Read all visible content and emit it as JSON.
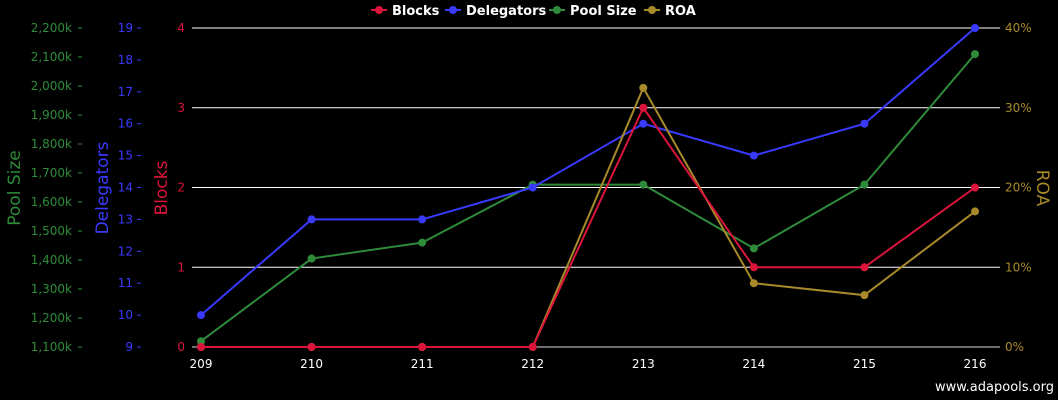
{
  "chart_data": {
    "type": "line",
    "x": [
      "209",
      "210",
      "211",
      "212",
      "213",
      "214",
      "215",
      "216"
    ],
    "legend": {
      "position": "top-center"
    },
    "grid": true,
    "series": [
      {
        "name": "Blocks",
        "color": "#dc143c",
        "axis": "blocks",
        "values": [
          0,
          0,
          0,
          0,
          3,
          1,
          1,
          2
        ]
      },
      {
        "name": "Delegators",
        "color": "#3a3aff",
        "axis": "delegators",
        "values": [
          10,
          13,
          13,
          14,
          16,
          15,
          16,
          19
        ]
      },
      {
        "name": "Pool Size",
        "color": "#2e8b3a",
        "axis": "poolsize",
        "values": [
          1120,
          1405,
          1460,
          1660,
          1660,
          1440,
          1660,
          2110
        ]
      },
      {
        "name": "ROA",
        "color": "#a88a2a",
        "axis": "roa",
        "values": [
          0,
          0,
          0,
          0,
          32.5,
          8,
          6.5,
          17
        ]
      }
    ],
    "axes": {
      "poolsize": {
        "label": "Pool Size",
        "color": "#2e8b3a",
        "range": [
          1100,
          2200
        ],
        "ticks": [
          "2,200k",
          "2,100k",
          "2,000k",
          "1,900k",
          "1,800k",
          "1,700k",
          "1,600k",
          "1,500k",
          "1,400k",
          "1,300k",
          "1,200k",
          "1,100k"
        ]
      },
      "delegators": {
        "label": "Delegators",
        "color": "#3a3aff",
        "range": [
          9,
          19
        ],
        "ticks": [
          "19",
          "18",
          "17",
          "16",
          "15",
          "14",
          "13",
          "12",
          "11",
          "10",
          "9"
        ]
      },
      "blocks": {
        "label": "Blocks",
        "color": "#dc143c",
        "range": [
          0,
          4
        ],
        "ticks": [
          "4",
          "3",
          "2",
          "1",
          "0"
        ]
      },
      "roa": {
        "label": "ROA",
        "color": "#a88a2a",
        "range": [
          0,
          40
        ],
        "ticks": [
          "40%",
          "30%",
          "20%",
          "10%",
          "0%"
        ]
      }
    }
  },
  "footer": {
    "credit": "www.adapools.org"
  }
}
